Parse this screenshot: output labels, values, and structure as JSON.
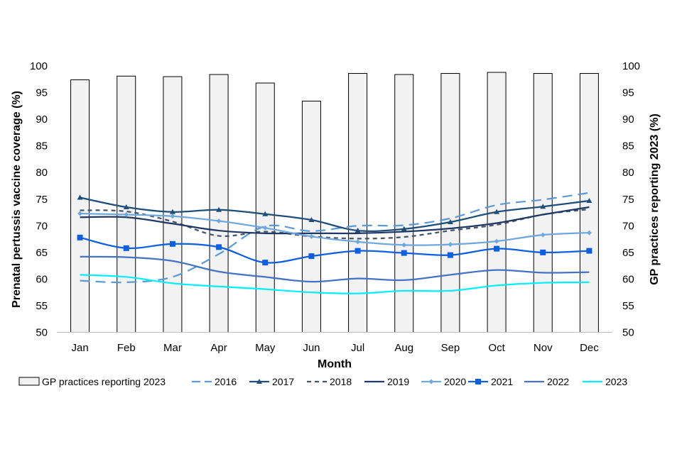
{
  "chart_data": {
    "type": "bar+line",
    "title": "",
    "xlabel": "Month",
    "ylabel_left": "Prenatal pertussis vaccine coverage (%)",
    "ylabel_right": "GP practices reporting 2023 (%)",
    "ylim": [
      50,
      100
    ],
    "ylim_right": [
      50,
      100
    ],
    "yticks": [
      50,
      55,
      60,
      65,
      70,
      75,
      80,
      85,
      90,
      95,
      100
    ],
    "categories": [
      "Jan",
      "Feb",
      "Mar",
      "Apr",
      "May",
      "Jun",
      "Jul",
      "Aug",
      "Sep",
      "Oct",
      "Nov",
      "Dec"
    ],
    "bars": {
      "name": "GP practices reporting 2023",
      "axis": "right",
      "values": [
        97.4,
        98.1,
        98.0,
        98.4,
        96.8,
        93.4,
        98.6,
        98.4,
        98.6,
        98.8,
        98.6,
        98.6
      ]
    },
    "series": [
      {
        "name": "2016",
        "color": "#5b9bd5",
        "dash": "long",
        "marker": "none",
        "values": [
          59.7,
          59.4,
          60.4,
          64.7,
          69.9,
          69.0,
          70.0,
          70.1,
          71.4,
          73.9,
          74.9,
          76.2
        ]
      },
      {
        "name": "2017",
        "color": "#1f4e79",
        "dash": "solid",
        "marker": "triangle",
        "values": [
          75.3,
          73.5,
          72.6,
          73.0,
          72.2,
          71.1,
          69.1,
          69.4,
          70.7,
          72.6,
          73.6,
          74.7
        ]
      },
      {
        "name": "2018",
        "color": "#44546a",
        "dash": "short",
        "marker": "none",
        "values": [
          72.9,
          72.7,
          70.8,
          68.1,
          68.9,
          68.0,
          67.6,
          67.9,
          69.1,
          70.2,
          72.1,
          73.1
        ]
      },
      {
        "name": "2019",
        "color": "#203864",
        "dash": "solid",
        "marker": "none",
        "values": [
          71.6,
          71.6,
          70.4,
          69.1,
          68.6,
          68.6,
          68.6,
          68.9,
          69.5,
          70.5,
          72.1,
          73.5
        ]
      },
      {
        "name": "2020",
        "color": "#6fa8dc",
        "dash": "solid",
        "marker": "diamond",
        "values": [
          72.3,
          72.1,
          71.8,
          70.9,
          69.6,
          68.0,
          67.0,
          66.4,
          66.5,
          67.1,
          68.3,
          68.7
        ]
      },
      {
        "name": "2021",
        "color": "#0b5fe0",
        "dash": "solid",
        "marker": "square",
        "values": [
          67.8,
          65.8,
          66.6,
          66.0,
          63.1,
          64.3,
          65.3,
          64.9,
          64.5,
          65.7,
          65.0,
          65.3
        ]
      },
      {
        "name": "2022",
        "color": "#4472c4",
        "dash": "solid",
        "marker": "none",
        "values": [
          64.2,
          64.1,
          63.4,
          61.4,
          60.4,
          59.5,
          60.1,
          59.8,
          60.8,
          61.7,
          61.2,
          61.3
        ]
      },
      {
        "name": "2023",
        "color": "#00f0ff",
        "dash": "solid",
        "marker": "none",
        "values": [
          60.8,
          60.4,
          59.2,
          58.6,
          58.1,
          57.5,
          57.3,
          57.8,
          57.8,
          58.8,
          59.3,
          59.4
        ]
      }
    ]
  }
}
